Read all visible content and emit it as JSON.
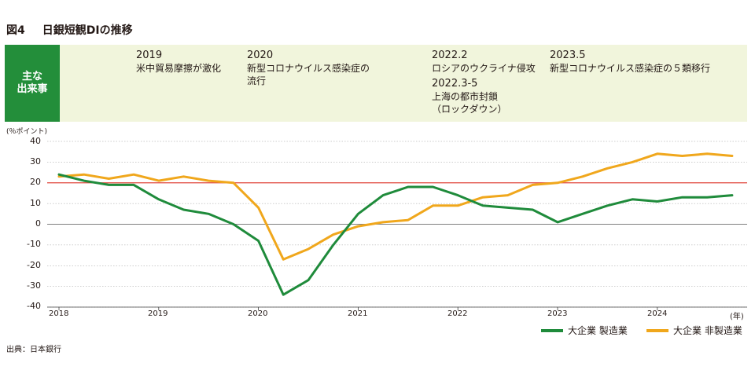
{
  "figure": {
    "number": "図4",
    "title": "日銀短観DIの推移"
  },
  "events": {
    "header_line1": "主な",
    "header_line2": "出来事",
    "items": [
      {
        "year": "2019",
        "lines": [
          "米中貿易摩擦が激化"
        ]
      },
      {
        "year": "2020",
        "lines": [
          "新型コロナウイルス感染症の",
          "流行"
        ]
      },
      {
        "year": "2022.2",
        "lines": [
          "ロシアのウクライナ侵攻"
        ]
      },
      {
        "year": "2022.3-5",
        "lines": [
          "上海の都市封鎖",
          "（ロックダウン）"
        ]
      },
      {
        "year": "2023.5",
        "lines": [
          "新型コロナウイルス感染症の５類移行"
        ]
      }
    ]
  },
  "chart_data": {
    "type": "line",
    "ylabel": "(％ポイント)",
    "xunit": "(年)",
    "ylim": [
      -40,
      40
    ],
    "yticks": [
      "40",
      "30",
      "20",
      "10",
      "0",
      "-10",
      "-20",
      "-30",
      "-40"
    ],
    "year_labels": [
      "2018",
      "2019",
      "2020",
      "2021",
      "2022",
      "2023",
      "2024"
    ],
    "x": [
      "2018Q1",
      "2018Q2",
      "2018Q3",
      "2018Q4",
      "2019Q1",
      "2019Q2",
      "2019Q3",
      "2019Q4",
      "2020Q1",
      "2020Q2",
      "2020Q3",
      "2020Q4",
      "2021Q1",
      "2021Q2",
      "2021Q3",
      "2021Q4",
      "2022Q1",
      "2022Q2",
      "2022Q3",
      "2022Q4",
      "2023Q1",
      "2023Q2",
      "2023Q3",
      "2023Q4",
      "2024Q1",
      "2024Q2",
      "2024Q3",
      "2024Q4"
    ],
    "series": [
      {
        "name": "大企業 製造業",
        "color": "#1f8b3b",
        "values": [
          24,
          21,
          19,
          19,
          12,
          7,
          5,
          0,
          -8,
          -34,
          -27,
          -10,
          5,
          14,
          18,
          18,
          14,
          9,
          8,
          7,
          1,
          5,
          9,
          12,
          11,
          13,
          13,
          14
        ]
      },
      {
        "name": "大企業 非製造業",
        "color": "#f0a71c",
        "values": [
          23,
          24,
          22,
          24,
          21,
          23,
          21,
          20,
          8,
          -17,
          -12,
          -5,
          -1,
          1,
          2,
          9,
          9,
          13,
          14,
          19,
          20,
          23,
          27,
          30,
          34,
          33,
          34,
          33
        ]
      }
    ],
    "reference_line": {
      "value": 20,
      "color": "#e0463c"
    },
    "grid": true,
    "legend": "bottom-right"
  },
  "source": "出典：日本銀行"
}
